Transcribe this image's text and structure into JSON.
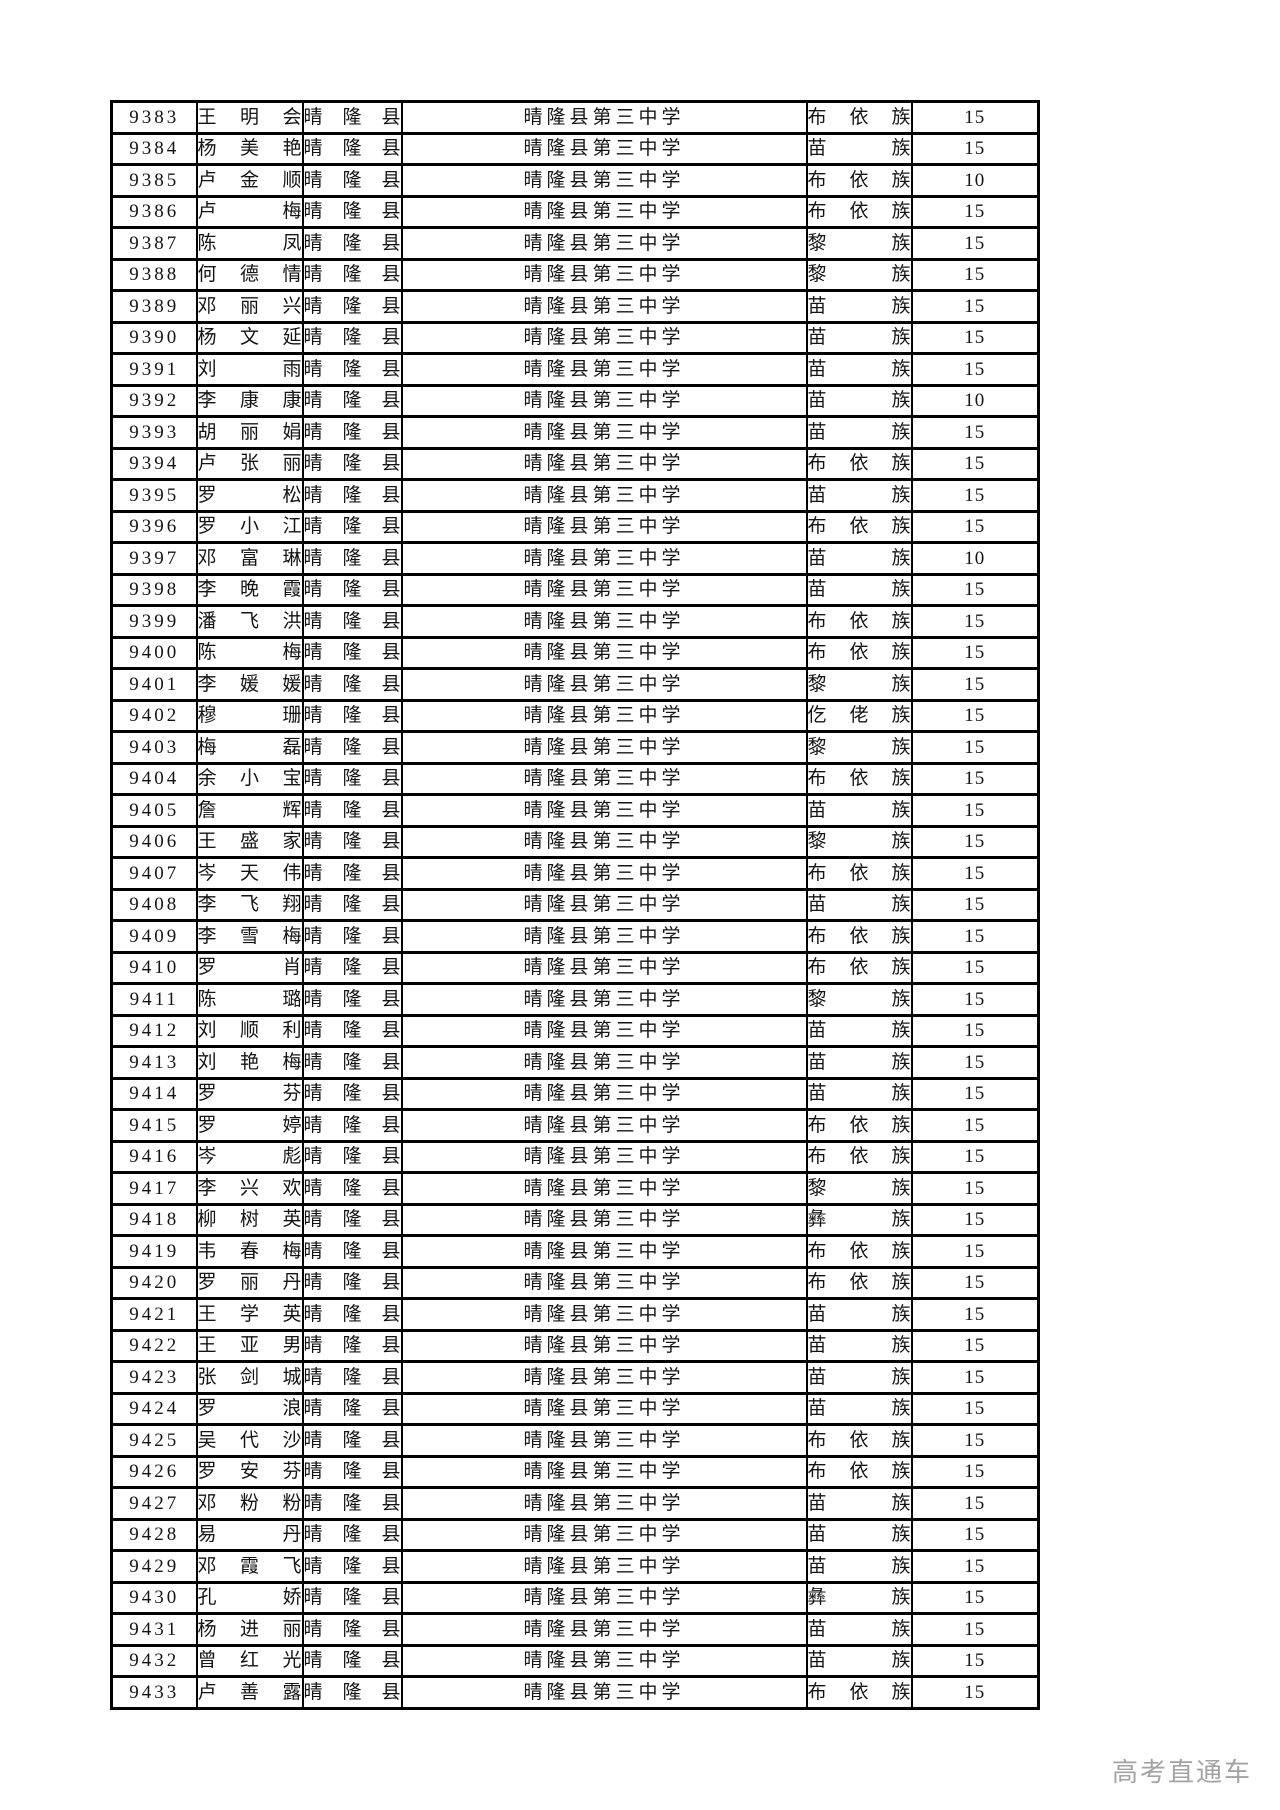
{
  "table": {
    "rows": [
      [
        "9383",
        "王明会",
        "晴隆县",
        "晴隆县第三中学",
        "布依族",
        "15"
      ],
      [
        "9384",
        "杨美艳",
        "晴隆县",
        "晴隆县第三中学",
        "苗族",
        "15"
      ],
      [
        "9385",
        "卢金顺",
        "晴隆县",
        "晴隆县第三中学",
        "布依族",
        "10"
      ],
      [
        "9386",
        "卢梅",
        "晴隆县",
        "晴隆县第三中学",
        "布依族",
        "15"
      ],
      [
        "9387",
        "陈凤",
        "晴隆县",
        "晴隆县第三中学",
        "黎族",
        "15"
      ],
      [
        "9388",
        "何德情",
        "晴隆县",
        "晴隆县第三中学",
        "黎族",
        "15"
      ],
      [
        "9389",
        "邓丽兴",
        "晴隆县",
        "晴隆县第三中学",
        "苗族",
        "15"
      ],
      [
        "9390",
        "杨文延",
        "晴隆县",
        "晴隆县第三中学",
        "苗族",
        "15"
      ],
      [
        "9391",
        "刘雨",
        "晴隆县",
        "晴隆县第三中学",
        "苗族",
        "15"
      ],
      [
        "9392",
        "李康康",
        "晴隆县",
        "晴隆县第三中学",
        "苗族",
        "10"
      ],
      [
        "9393",
        "胡丽娟",
        "晴隆县",
        "晴隆县第三中学",
        "苗族",
        "15"
      ],
      [
        "9394",
        "卢张丽",
        "晴隆县",
        "晴隆县第三中学",
        "布依族",
        "15"
      ],
      [
        "9395",
        "罗松",
        "晴隆县",
        "晴隆县第三中学",
        "苗族",
        "15"
      ],
      [
        "9396",
        "罗小江",
        "晴隆县",
        "晴隆县第三中学",
        "布依族",
        "15"
      ],
      [
        "9397",
        "邓富琳",
        "晴隆县",
        "晴隆县第三中学",
        "苗族",
        "10"
      ],
      [
        "9398",
        "李晚霞",
        "晴隆县",
        "晴隆县第三中学",
        "苗族",
        "15"
      ],
      [
        "9399",
        "潘飞洪",
        "晴隆县",
        "晴隆县第三中学",
        "布依族",
        "15"
      ],
      [
        "9400",
        "陈梅",
        "晴隆县",
        "晴隆县第三中学",
        "布依族",
        "15"
      ],
      [
        "9401",
        "李媛媛",
        "晴隆县",
        "晴隆县第三中学",
        "黎族",
        "15"
      ],
      [
        "9402",
        "穆珊",
        "晴隆县",
        "晴隆县第三中学",
        "仡佬族",
        "15"
      ],
      [
        "9403",
        "梅磊",
        "晴隆县",
        "晴隆县第三中学",
        "黎族",
        "15"
      ],
      [
        "9404",
        "余小宝",
        "晴隆县",
        "晴隆县第三中学",
        "布依族",
        "15"
      ],
      [
        "9405",
        "詹辉",
        "晴隆县",
        "晴隆县第三中学",
        "苗族",
        "15"
      ],
      [
        "9406",
        "王盛家",
        "晴隆县",
        "晴隆县第三中学",
        "黎族",
        "15"
      ],
      [
        "9407",
        "岑天伟",
        "晴隆县",
        "晴隆县第三中学",
        "布依族",
        "15"
      ],
      [
        "9408",
        "李飞翔",
        "晴隆县",
        "晴隆县第三中学",
        "苗族",
        "15"
      ],
      [
        "9409",
        "李雪梅",
        "晴隆县",
        "晴隆县第三中学",
        "布依族",
        "15"
      ],
      [
        "9410",
        "罗肖",
        "晴隆县",
        "晴隆县第三中学",
        "布依族",
        "15"
      ],
      [
        "9411",
        "陈璐",
        "晴隆县",
        "晴隆县第三中学",
        "黎族",
        "15"
      ],
      [
        "9412",
        "刘顺利",
        "晴隆县",
        "晴隆县第三中学",
        "苗族",
        "15"
      ],
      [
        "9413",
        "刘艳梅",
        "晴隆县",
        "晴隆县第三中学",
        "苗族",
        "15"
      ],
      [
        "9414",
        "罗芬",
        "晴隆县",
        "晴隆县第三中学",
        "苗族",
        "15"
      ],
      [
        "9415",
        "罗婷",
        "晴隆县",
        "晴隆县第三中学",
        "布依族",
        "15"
      ],
      [
        "9416",
        "岑彪",
        "晴隆县",
        "晴隆县第三中学",
        "布依族",
        "15"
      ],
      [
        "9417",
        "李兴欢",
        "晴隆县",
        "晴隆县第三中学",
        "黎族",
        "15"
      ],
      [
        "9418",
        "柳树英",
        "晴隆县",
        "晴隆县第三中学",
        "彝族",
        "15"
      ],
      [
        "9419",
        "韦春梅",
        "晴隆县",
        "晴隆县第三中学",
        "布依族",
        "15"
      ],
      [
        "9420",
        "罗丽丹",
        "晴隆县",
        "晴隆县第三中学",
        "布依族",
        "15"
      ],
      [
        "9421",
        "王学英",
        "晴隆县",
        "晴隆县第三中学",
        "苗族",
        "15"
      ],
      [
        "9422",
        "王亚男",
        "晴隆县",
        "晴隆县第三中学",
        "苗族",
        "15"
      ],
      [
        "9423",
        "张剑城",
        "晴隆县",
        "晴隆县第三中学",
        "苗族",
        "15"
      ],
      [
        "9424",
        "罗浪",
        "晴隆县",
        "晴隆县第三中学",
        "苗族",
        "15"
      ],
      [
        "9425",
        "吴代沙",
        "晴隆县",
        "晴隆县第三中学",
        "布依族",
        "15"
      ],
      [
        "9426",
        "罗安芬",
        "晴隆县",
        "晴隆县第三中学",
        "布依族",
        "15"
      ],
      [
        "9427",
        "邓粉粉",
        "晴隆县",
        "晴隆县第三中学",
        "苗族",
        "15"
      ],
      [
        "9428",
        "易丹",
        "晴隆县",
        "晴隆县第三中学",
        "苗族",
        "15"
      ],
      [
        "9429",
        "邓霞飞",
        "晴隆县",
        "晴隆县第三中学",
        "苗族",
        "15"
      ],
      [
        "9430",
        "孔娇",
        "晴隆县",
        "晴隆县第三中学",
        "彝族",
        "15"
      ],
      [
        "9431",
        "杨进丽",
        "晴隆县",
        "晴隆县第三中学",
        "苗族",
        "15"
      ],
      [
        "9432",
        "曾红光",
        "晴隆县",
        "晴隆县第三中学",
        "苗族",
        "15"
      ],
      [
        "9433",
        "卢善露",
        "晴隆县",
        "晴隆县第三中学",
        "布依族",
        "15"
      ]
    ]
  },
  "footer": {
    "watermark": "高考直通车"
  },
  "colors": {
    "border": "#000000",
    "text": "#141414",
    "watermark": "#a3a3a3",
    "background": "#ffffff"
  }
}
